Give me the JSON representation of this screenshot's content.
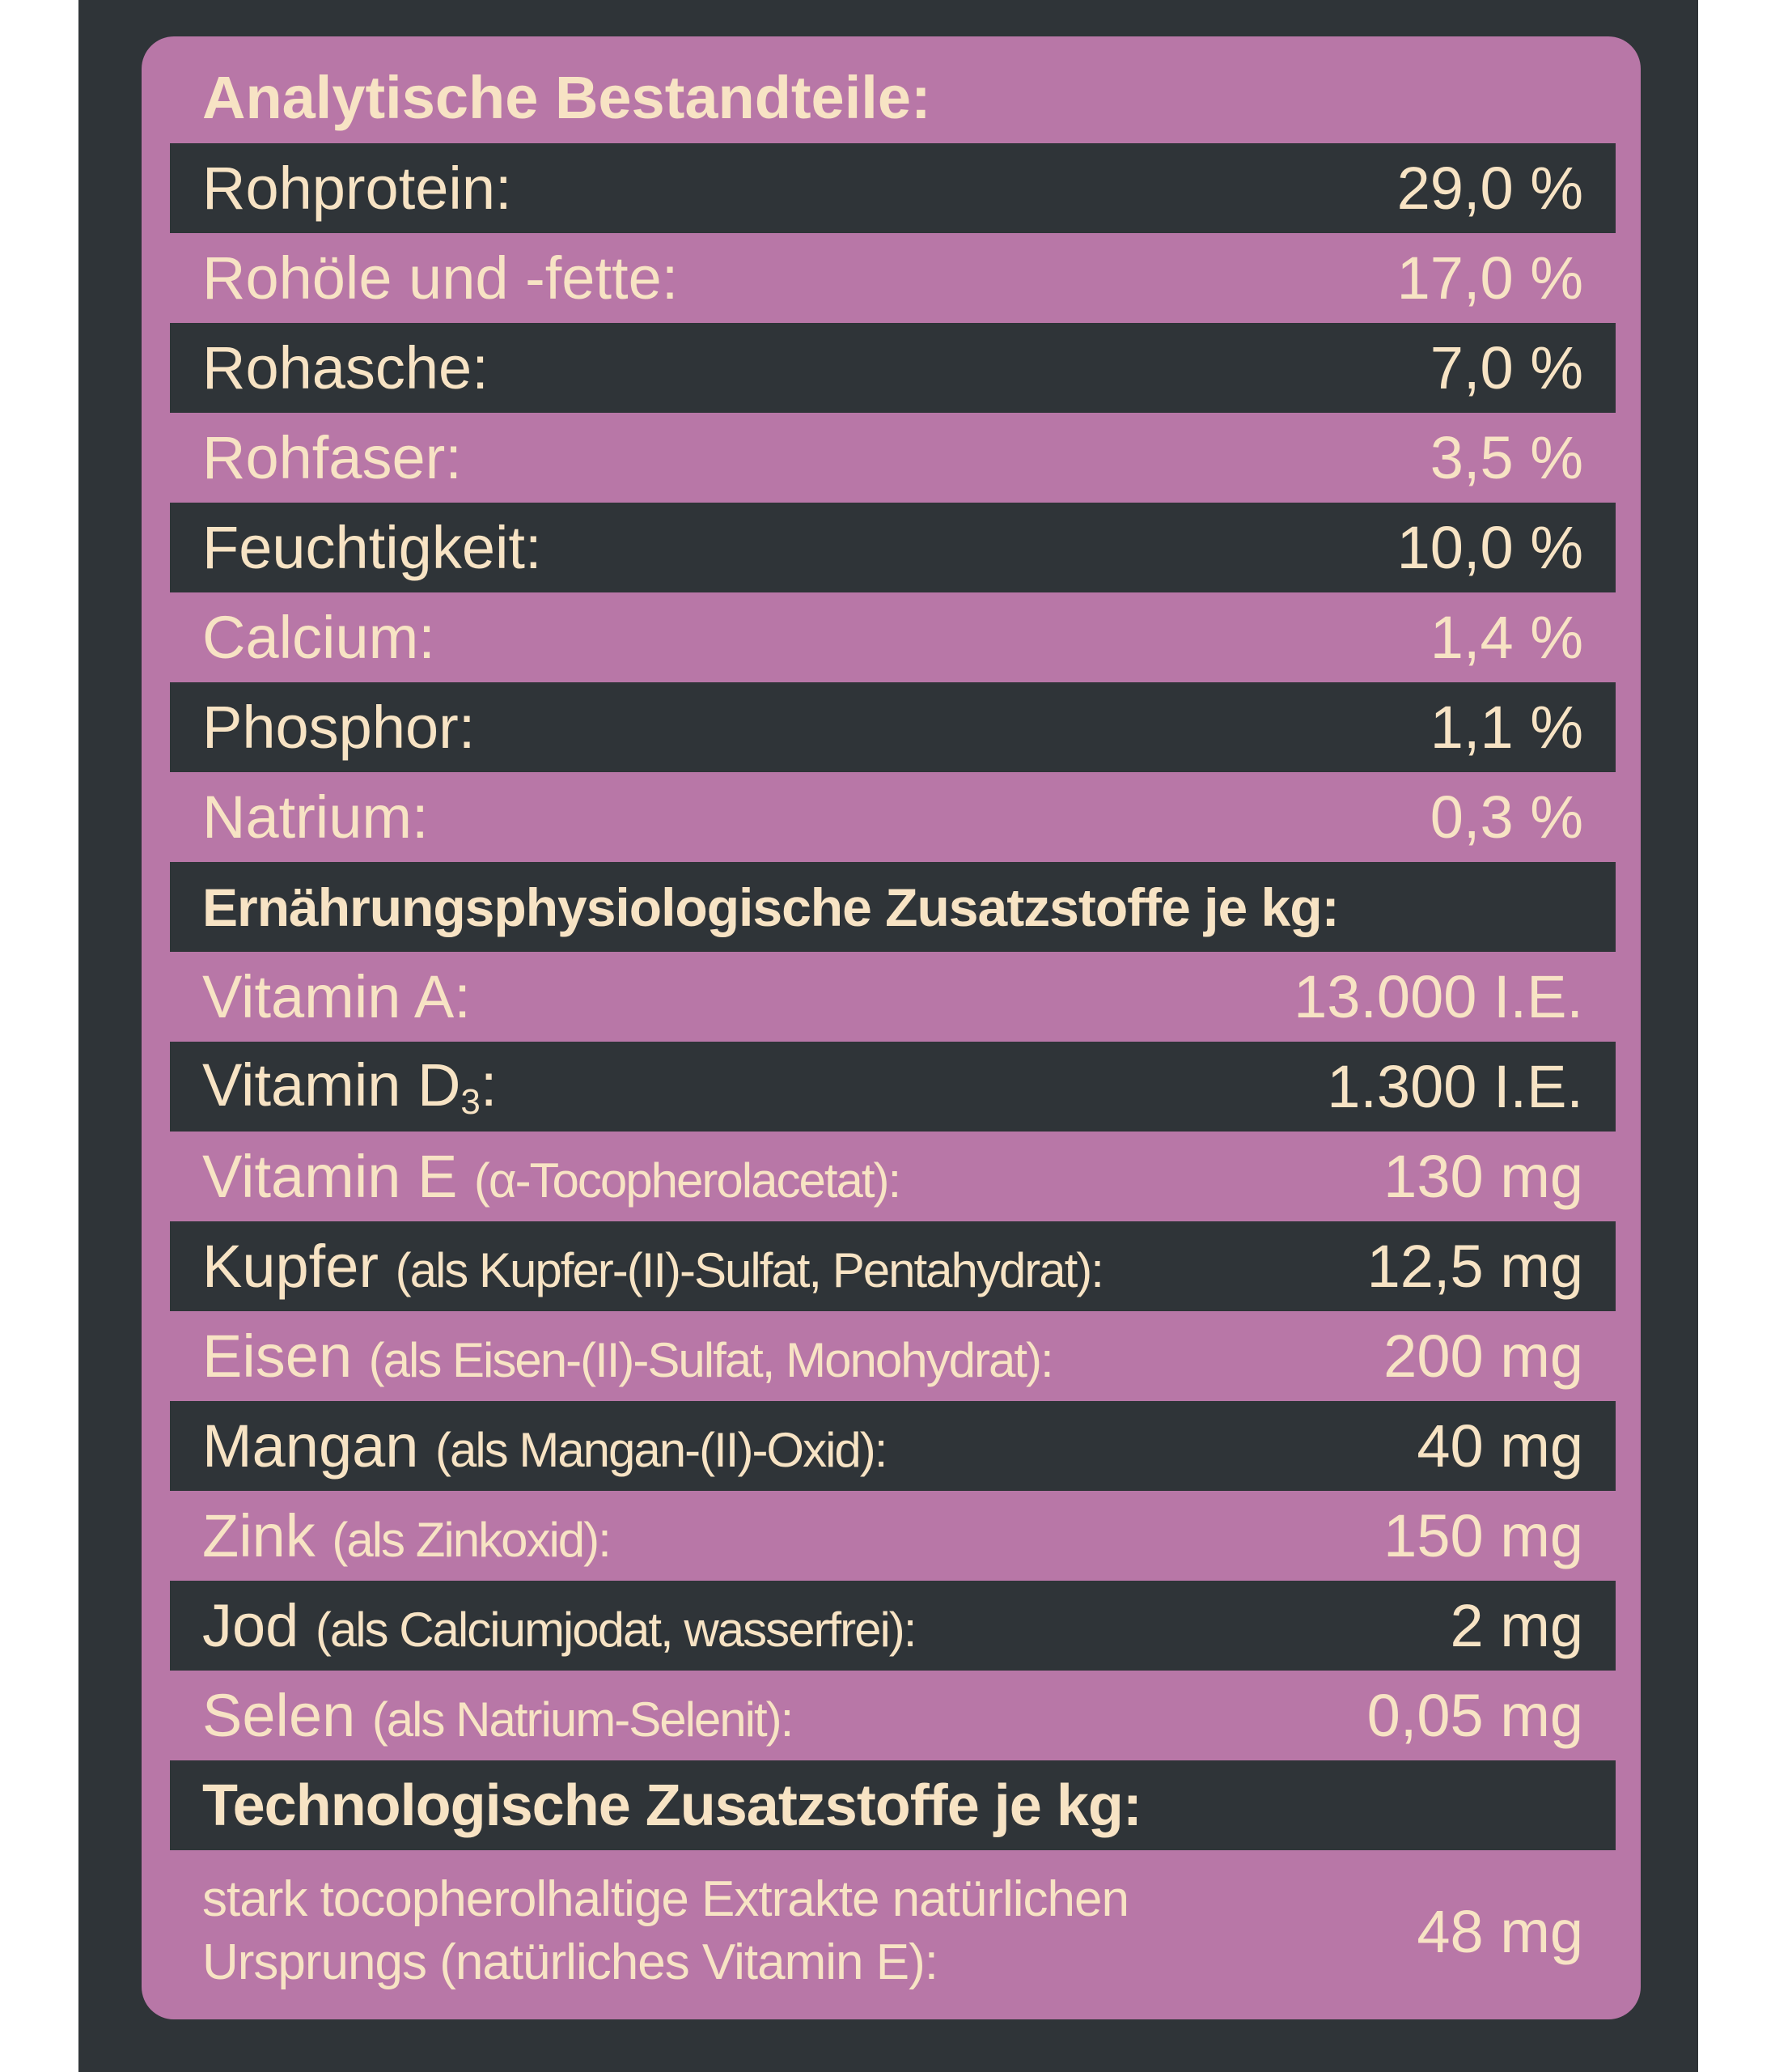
{
  "colors": {
    "backing": "#2f3438",
    "panel": "#b877a7",
    "text": "#f7e3c4"
  },
  "heading_analytic": "Analytische Bestandteile:",
  "analytic": [
    {
      "label": "Rohprotein:",
      "value": "29,0 %"
    },
    {
      "label": "Rohöle und -fette:",
      "value": "17,0 %"
    },
    {
      "label": "Rohasche:",
      "value": "7,0 %"
    },
    {
      "label": "Rohfaser:",
      "value": "3,5 %"
    },
    {
      "label": "Feuchtigkeit:",
      "value": "10,0 %"
    },
    {
      "label": "Calcium:",
      "value": "1,4 %"
    },
    {
      "label": "Phosphor:",
      "value": "1,1 %"
    },
    {
      "label": "Natrium:",
      "value": "0,3 %"
    }
  ],
  "heading_nutritional": "Ernährungsphysiologische Zusatzstoffe je kg:",
  "nutritional": [
    {
      "label": "Vitamin A:",
      "detail": "",
      "value": "13.000 I.E."
    },
    {
      "label_pre": "Vitamin D",
      "label_sub": "3",
      "label_post": ":",
      "value": "1.300 I.E."
    },
    {
      "label": "Vitamin E",
      "detail": "(α-Tocopherolacetat):",
      "value": "130 mg"
    },
    {
      "label": "Kupfer",
      "detail": "(als Kupfer-(II)-Sulfat, Pentahydrat):",
      "value": "12,5 mg"
    },
    {
      "label": "Eisen",
      "detail": "(als Eisen-(II)-Sulfat, Monohydrat):",
      "value": "200 mg"
    },
    {
      "label": "Mangan",
      "detail": "(als Mangan-(II)-Oxid):",
      "value": "40 mg"
    },
    {
      "label": "Zink",
      "detail": "(als Zinkoxid):",
      "value": "150 mg"
    },
    {
      "label": "Jod",
      "detail": "(als Calciumjodat, wasserfrei):",
      "value": "2 mg"
    },
    {
      "label": "Selen",
      "detail": "(als Natrium-Selenit):",
      "value": "0,05 mg"
    }
  ],
  "heading_technological": "Technologische Zusatzstoffe je kg:",
  "technological": [
    {
      "label": "stark tocopherolhaltige Extrakte natürlichen Ursprungs (natürliches Vitamin E):",
      "value": "48 mg"
    }
  ]
}
